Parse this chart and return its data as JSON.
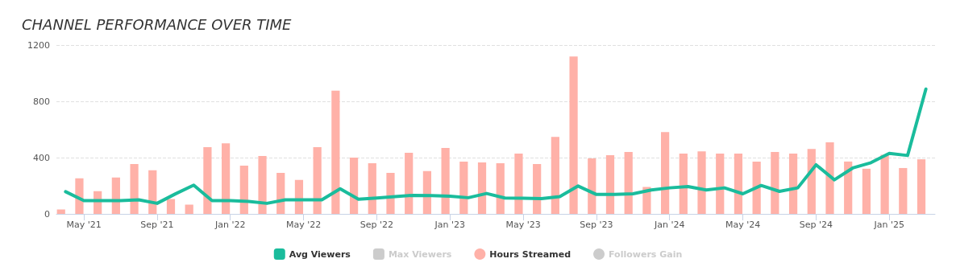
{
  "chart_data": {
    "type": "bar",
    "title": "CHANNEL PERFORMANCE OVER TIME",
    "categories": [
      null,
      "May '21",
      null,
      null,
      null,
      "Sep '21",
      null,
      null,
      null,
      "Jan '22",
      null,
      null,
      null,
      "May '22",
      null,
      null,
      null,
      "Sep '22",
      null,
      null,
      null,
      "Jan '23",
      null,
      null,
      null,
      "May '23",
      null,
      null,
      null,
      "Sep '23",
      null,
      null,
      null,
      "Jan '24",
      null,
      null,
      null,
      "May '24",
      null,
      null,
      null,
      "Sep '24",
      null,
      null,
      null,
      "Jan '25",
      null,
      null
    ],
    "series": [
      {
        "name": "Avg Viewers",
        "type": "line",
        "color": "#1abc9c",
        "values": [
          158,
          94,
          94,
          94,
          100,
          75,
          142,
          204,
          94,
          94,
          89,
          75,
          100,
          100,
          100,
          179,
          104,
          113,
          123,
          132,
          130,
          126,
          115,
          145,
          113,
          111,
          109,
          123,
          198,
          138,
          138,
          143,
          170,
          185,
          194,
          170,
          185,
          143,
          202,
          160,
          185,
          349,
          242,
          326,
          364,
          430,
          415,
          887
        ]
      },
      {
        "name": "Max Viewers",
        "type": "line",
        "color": "#cccccc",
        "values": [
          null,
          null,
          null,
          null,
          null,
          null,
          null,
          null,
          null,
          null,
          null,
          null,
          null,
          null,
          null,
          null,
          null,
          null,
          null,
          null,
          null,
          null,
          null,
          null,
          null,
          null,
          null,
          null,
          null,
          null,
          null,
          null,
          null,
          null,
          null,
          null,
          null,
          null,
          null,
          null,
          null,
          null,
          null,
          null,
          null,
          null,
          null,
          null
        ]
      },
      {
        "name": "Hours Streamed",
        "color": "#ffb1a8",
        "values": [
          32,
          253,
          162,
          258,
          355,
          310,
          106,
          66,
          474,
          502,
          343,
          411,
          292,
          241,
          474,
          876,
          400,
          360,
          292,
          434,
          304,
          468,
          372,
          366,
          360,
          428,
          355,
          547,
          1119,
          394,
          417,
          440,
          192,
          581,
          428,
          445,
          428,
          428,
          372,
          440,
          428,
          462,
          508,
          372,
          321,
          420,
          326,
          388
        ]
      },
      {
        "name": "Followers Gain",
        "color": "#cccccc",
        "values": [
          null,
          null,
          null,
          null,
          null,
          null,
          null,
          null,
          null,
          null,
          null,
          null,
          null,
          null,
          null,
          null,
          null,
          null,
          null,
          null,
          null,
          null,
          null,
          null,
          null,
          null,
          null,
          null,
          null,
          null,
          null,
          null,
          null,
          null,
          null,
          null,
          null,
          null,
          null,
          null,
          null,
          null,
          null,
          null,
          null,
          null,
          null,
          null
        ]
      }
    ],
    "ylim": [
      0,
      1200
    ],
    "yticks": [
      0,
      400,
      800,
      1200
    ],
    "grid": "y",
    "legend": "bottom",
    "marker": "none",
    "line_style": "solid"
  }
}
